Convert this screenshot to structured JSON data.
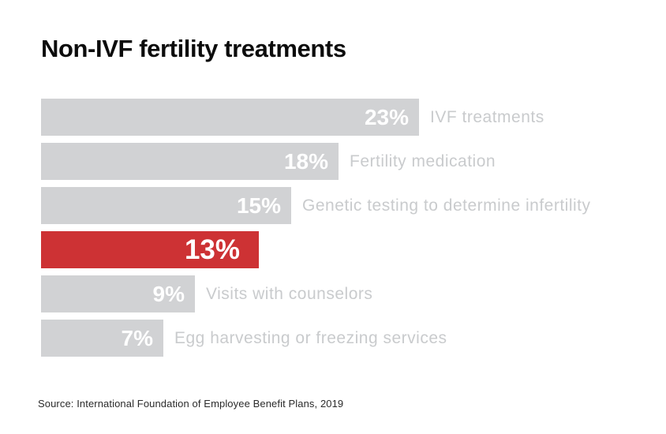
{
  "title": "Non-IVF fertility treatments",
  "source": "Source: International Foundation of Employee Benefit Plans, 2019",
  "colors": {
    "background": "#ffffff",
    "bar_default": "#d1d2d4",
    "bar_highlight": "#cd3234",
    "value_label": "#ffffff",
    "category_label": "#c9cbcd",
    "title": "#0c0c0c",
    "source": "#2b2b2b"
  },
  "chart_data": {
    "type": "bar",
    "orientation": "horizontal",
    "title": "Non-IVF fertility treatments",
    "xlim": [
      0,
      23
    ],
    "grid": false,
    "legend": "none",
    "value_unit": "%",
    "highlight_index": 3,
    "highlight_note": "Red bar (13%) has no side label; it is identified by the chart title",
    "categories": [
      "IVF treatments",
      "Fertility medication",
      "Genetic testing to determine infertility",
      "",
      "Visits with counselors",
      "Egg harvesting or freezing services"
    ],
    "values": [
      23,
      18,
      15,
      13,
      9,
      7
    ],
    "bars": [
      {
        "label": "IVF treatments",
        "value": 23,
        "display": "23%",
        "highlighted": false
      },
      {
        "label": "Fertility medication",
        "value": 18,
        "display": "18%",
        "highlighted": false
      },
      {
        "label": "Genetic testing to determine infertility",
        "value": 15,
        "display": "15%",
        "highlighted": false
      },
      {
        "label": "",
        "value": 13,
        "display": "13%",
        "highlighted": true
      },
      {
        "label": "Visits with counselors",
        "value": 9,
        "display": "9%",
        "highlighted": false
      },
      {
        "label": "Egg harvesting or freezing services",
        "value": 7,
        "display": "7%",
        "highlighted": false
      }
    ],
    "source": "Source: International Foundation of Employee Benefit Plans, 2019"
  }
}
